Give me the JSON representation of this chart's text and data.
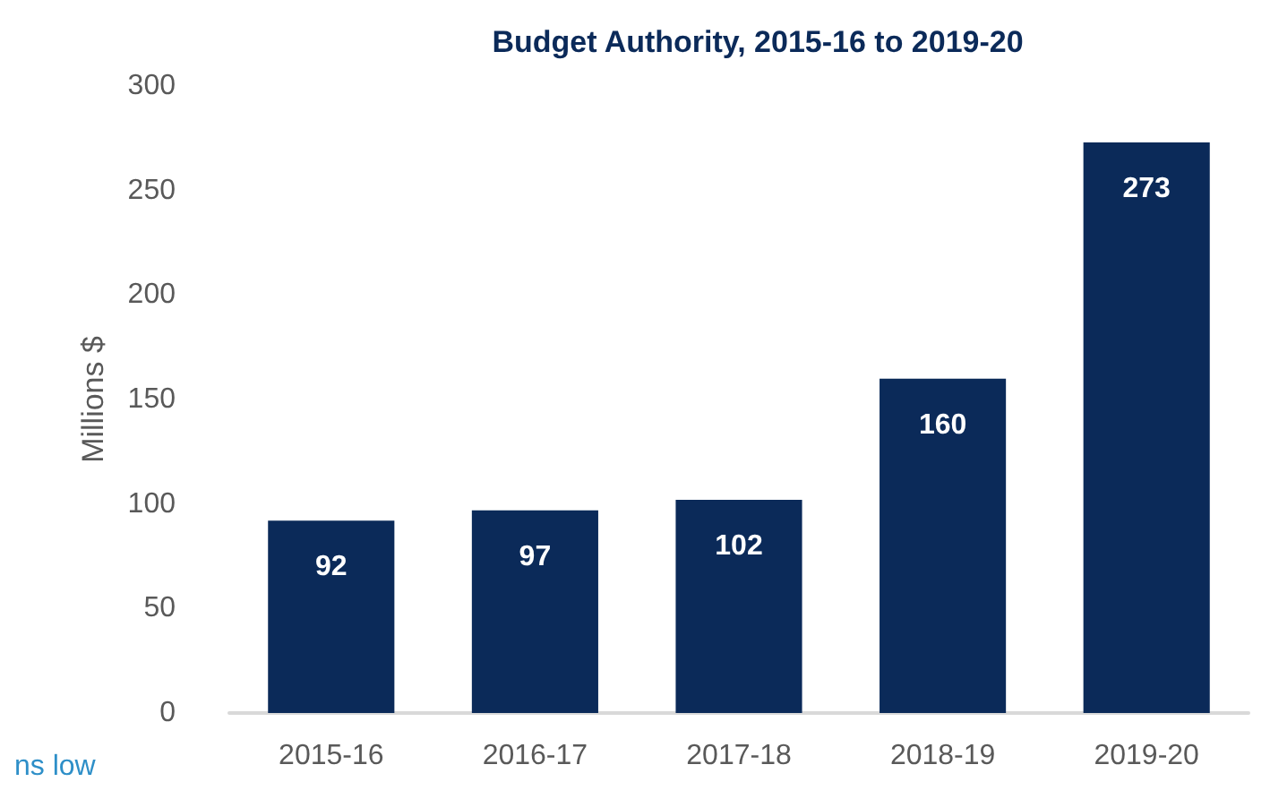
{
  "chart_data": {
    "type": "bar",
    "title": "Budget Authority, 2015-16 to 2019-20",
    "ylabel": "Millions $",
    "categories": [
      "2015-16",
      "2016-17",
      "2017-18",
      "2018-19",
      "2019-20"
    ],
    "values": [
      92,
      97,
      102,
      160,
      273
    ],
    "color": "#0b2a59",
    "ylim": [
      0,
      300
    ],
    "yticks": [
      0,
      50,
      100,
      150,
      200,
      250,
      300
    ],
    "grid": false,
    "data_labels": true,
    "annotations": [
      "ns low"
    ]
  }
}
